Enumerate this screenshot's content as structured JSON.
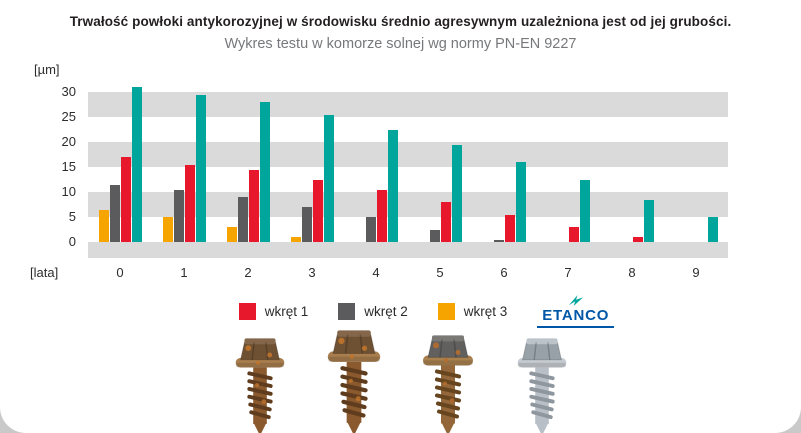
{
  "page": {
    "title": "Trwałość powłoki antykorozyjnej w środowisku średnio agresywnym uzależniona jest od jej grubości.",
    "subtitle": "Wykres testu w komorze solnej wg normy PN-EN 9227"
  },
  "chart_data": {
    "type": "bar",
    "title": "Trwałość powłoki antykorozyjnej w środowisku średnio agresywnym uzależniona jest od jej grubości.",
    "subtitle": "Wykres testu w komorze solnej wg normy PN-EN 9227",
    "ylabel": "[µm]",
    "xlabel": "[lata]",
    "categories": [
      "0",
      "1",
      "2",
      "3",
      "4",
      "5",
      "6",
      "7",
      "8",
      "9"
    ],
    "ylim": [
      0,
      32
    ],
    "yticks": [
      0,
      5,
      10,
      15,
      20,
      25,
      30
    ],
    "grid": "horizontal gray bands every 5 µm",
    "legend_position": "bottom",
    "bar_order": [
      "wkręt 3",
      "wkręt 2",
      "wkręt 1",
      "ETANCO"
    ],
    "series": [
      {
        "name": "wkręt 3",
        "color": "#f6a500",
        "values": [
          6.5,
          5,
          3,
          1,
          0,
          0,
          0,
          0,
          0,
          0
        ]
      },
      {
        "name": "wkręt 2",
        "color": "#5b5b5e",
        "values": [
          11.5,
          10.5,
          9,
          7,
          5,
          2.5,
          0.5,
          0,
          0,
          0
        ]
      },
      {
        "name": "wkręt 1",
        "color": "#e8182c",
        "values": [
          17,
          15.5,
          14.5,
          12.5,
          10.5,
          8,
          5.5,
          3,
          1,
          0
        ]
      },
      {
        "name": "ETANCO",
        "color": "#00a59b",
        "values": [
          31,
          29.5,
          28,
          25.5,
          22.5,
          19.5,
          16,
          12.5,
          8.5,
          5
        ]
      }
    ]
  },
  "legend": {
    "items": [
      {
        "label": "wkręt 1",
        "color": "#e8182c"
      },
      {
        "label": "wkręt 2",
        "color": "#5b5b5e"
      },
      {
        "label": "wkręt 3",
        "color": "#f6a500"
      }
    ],
    "brand": {
      "label": "ETANCO",
      "text_color": "#0057a8",
      "accent_color": "#00a59b"
    }
  },
  "photos": [
    {
      "name": "screw-photo-1",
      "corrosion": "heavy"
    },
    {
      "name": "screw-photo-2",
      "corrosion": "heavy"
    },
    {
      "name": "screw-photo-3",
      "corrosion": "moderate"
    },
    {
      "name": "screw-photo-4",
      "corrosion": "clean"
    }
  ]
}
